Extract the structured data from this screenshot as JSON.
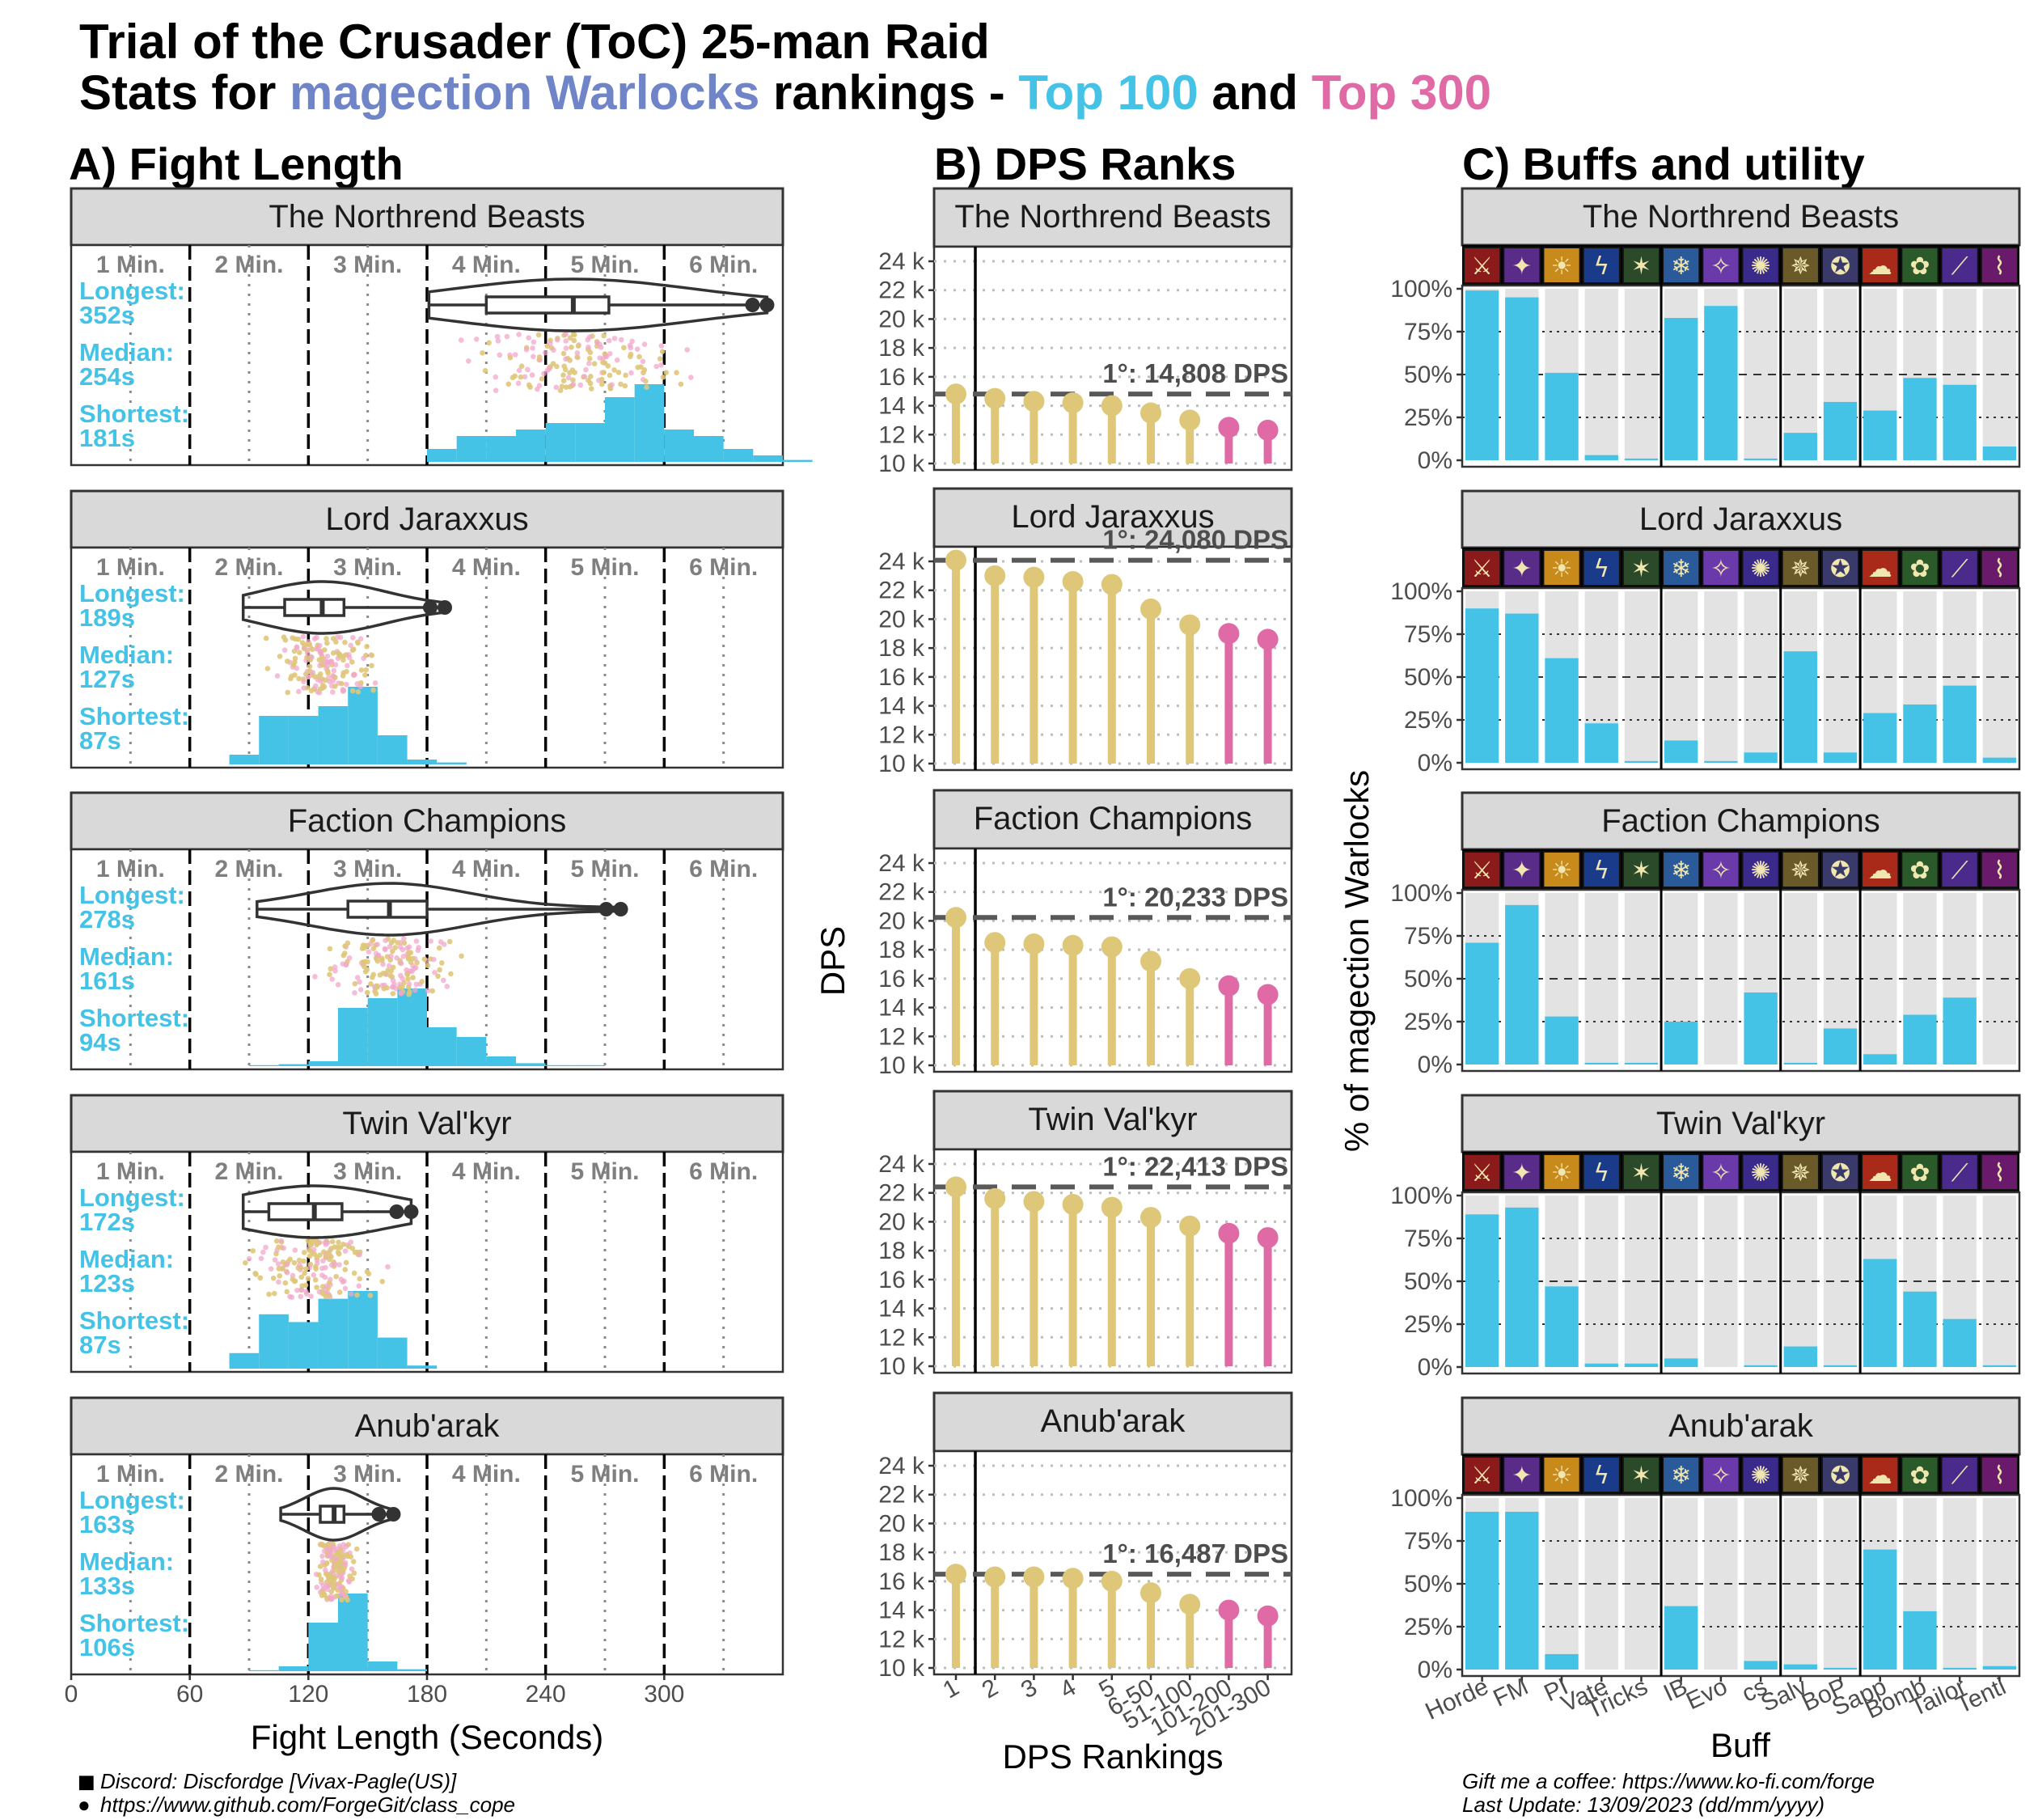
{
  "title": {
    "line1": "Trial of the Crusader (ToC) 25-man Raid",
    "line2_prefix": "Stats for ",
    "line2_class": "magection Warlocks",
    "line2_mid": " rankings - ",
    "line2_top100": "Top 100",
    "line2_and": " and ",
    "line2_top300": "Top 300"
  },
  "colors": {
    "warlock": "#6f85c8",
    "top100": "#45c3e6",
    "top300": "#e06aa6",
    "gold": "#dfc77a",
    "pink": "#e06aa6",
    "bar": "#45c3e6"
  },
  "sections": {
    "a": "A) Fight Length",
    "b": "B) DPS Ranks",
    "c": "C) Buffs and utility"
  },
  "chart_data": [
    {
      "type": "violin-histogram",
      "title": "A) Fight Length",
      "xlabel": "Fight Length (Seconds)",
      "xlim": [
        0,
        360
      ],
      "x_ticks": [
        0,
        60,
        120,
        180,
        240,
        300
      ],
      "minute_labels": [
        "1 Min.",
        "2 Min.",
        "3 Min.",
        "4 Min.",
        "5 Min.",
        "6 Min."
      ],
      "stat_labels": [
        "Longest:",
        "Median:",
        "Shortest:"
      ],
      "bosses": [
        {
          "name": "The Northrend Beasts",
          "longest": "352s",
          "median": "254s",
          "shortest": "181s",
          "min": 181,
          "q1": 210,
          "med": 254,
          "q3": 272,
          "max": 352,
          "hist_start": 180,
          "hist": [
            2,
            4,
            4,
            5,
            6,
            6,
            10,
            12,
            5,
            4,
            2,
            1,
            0.3
          ]
        },
        {
          "name": "Lord Jaraxxus",
          "longest": "189s",
          "median": "127s",
          "shortest": "87s",
          "min": 87,
          "q1": 108,
          "med": 127,
          "q3": 138,
          "max": 189,
          "hist_start": 80,
          "hist": [
            1,
            5,
            5,
            6,
            8,
            3,
            0.5,
            0.2
          ]
        },
        {
          "name": "Faction Champions",
          "longest": "278s",
          "median": "161s",
          "shortest": "94s",
          "min": 94,
          "q1": 140,
          "med": 161,
          "q3": 180,
          "max": 278,
          "hist_start": 90,
          "hist": [
            0.1,
            0.2,
            0.5,
            6,
            7,
            8,
            4,
            3,
            1,
            0.3,
            0.1,
            0.1
          ]
        },
        {
          "name": "Twin Val'kyr",
          "longest": "172s",
          "median": "123s",
          "shortest": "87s",
          "min": 87,
          "q1": 100,
          "med": 123,
          "q3": 137,
          "max": 172,
          "hist_start": 80,
          "hist": [
            1,
            3.5,
            3,
            4.5,
            5,
            2,
            0.2
          ]
        },
        {
          "name": "Anub'arak",
          "longest": "163s",
          "median": "133s",
          "shortest": "106s",
          "min": 106,
          "q1": 126,
          "med": 133,
          "q3": 138,
          "max": 163,
          "hist_start": 90,
          "hist": [
            0.1,
            0.5,
            5,
            8,
            1,
            0.2
          ]
        }
      ]
    },
    {
      "type": "lollipop",
      "title": "B) DPS Ranks",
      "xlabel": "DPS Rankings",
      "ylabel": "DPS",
      "ylim": [
        9500,
        25500
      ],
      "y_ticks": [
        "10 k",
        "12 k",
        "14 k",
        "16 k",
        "18 k",
        "20 k",
        "22 k",
        "24 k"
      ],
      "categories": [
        "1",
        "2",
        "3",
        "4",
        "5",
        "6-50",
        "51-100",
        "101-200",
        "201-300"
      ],
      "category_groups": [
        "top100",
        "top100",
        "top100",
        "top100",
        "top100",
        "top100",
        "top100",
        "top300",
        "top300"
      ],
      "bosses": [
        {
          "name": "The Northrend Beasts",
          "top_label": "1°: 14,808 DPS",
          "values": [
            14808,
            14500,
            14300,
            14200,
            14000,
            13500,
            13000,
            12500,
            12300
          ]
        },
        {
          "name": "Lord Jaraxxus",
          "top_label": "1°: 24,080 DPS",
          "values": [
            24080,
            23000,
            22900,
            22600,
            22400,
            20700,
            19600,
            19000,
            18600
          ]
        },
        {
          "name": "Faction Champions",
          "top_label": "1°: 20,233 DPS",
          "values": [
            20233,
            18500,
            18400,
            18300,
            18200,
            17200,
            16000,
            15500,
            14900
          ]
        },
        {
          "name": "Twin Val'kyr",
          "top_label": "1°: 22,413 DPS",
          "values": [
            22413,
            21600,
            21400,
            21200,
            21000,
            20300,
            19700,
            19200,
            18900
          ]
        },
        {
          "name": "Anub'arak",
          "top_label": "1°: 16,487 DPS",
          "values": [
            16487,
            16300,
            16300,
            16200,
            16000,
            15200,
            14400,
            14000,
            13600
          ]
        }
      ]
    },
    {
      "type": "bar",
      "title": "C) Buffs and utility",
      "xlabel": "Buff",
      "ylabel": "% of magection Warlocks",
      "ylim": [
        0,
        100
      ],
      "y_ticks": [
        "0%",
        "25%",
        "50%",
        "75%",
        "100%"
      ],
      "categories": [
        "Horde",
        "FM",
        "PI",
        "Vate",
        "Tricks",
        "IB",
        "Evo",
        "cs",
        "Salv",
        "BoP",
        "Sapp",
        "Bomb",
        "Tailor",
        "Tenti"
      ],
      "groups": [
        5,
        3,
        2,
        4
      ],
      "icon_names": [
        "horde-icon",
        "fm-icon",
        "pi-icon",
        "vate-icon",
        "tricks-icon",
        "ib-icon",
        "evo-icon",
        "cs-icon",
        "salv-icon",
        "bop-icon",
        "sapp-icon",
        "bomb-icon",
        "tailor-icon",
        "tenti-icon"
      ],
      "bosses": [
        {
          "name": "The Northrend Beasts",
          "values": [
            99,
            95,
            51,
            3,
            1,
            83,
            90,
            1,
            16,
            34,
            29,
            48,
            44,
            8
          ]
        },
        {
          "name": "Lord Jaraxxus",
          "values": [
            90,
            87,
            61,
            23,
            1,
            13,
            1,
            6,
            65,
            6,
            29,
            34,
            45,
            3
          ]
        },
        {
          "name": "Faction Champions",
          "values": [
            71,
            93,
            28,
            1,
            1,
            25,
            0,
            42,
            1,
            21,
            6,
            29,
            39,
            0
          ]
        },
        {
          "name": "Twin Val'kyr",
          "values": [
            89,
            93,
            47,
            2,
            2,
            5,
            0,
            1,
            12,
            1,
            63,
            44,
            28,
            1
          ]
        },
        {
          "name": "Anub'arak",
          "values": [
            92,
            92,
            9,
            0,
            0,
            37,
            0,
            5,
            3,
            1,
            70,
            34,
            1,
            2
          ]
        }
      ]
    }
  ],
  "footer": {
    "discord": "Discord: Discfordge [Vivax-Pagle(US)]",
    "github": "https://www.github.com/ForgeGit/class_cope",
    "coffee": "Gift me a coffee: https://www.ko-fi.com/forge",
    "update": "Last Update: 13/09/2023 (dd/mm/yyyy)"
  }
}
